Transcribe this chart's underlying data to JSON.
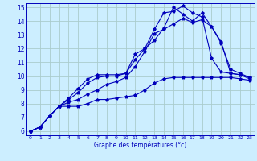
{
  "xlabel": "Graphe des températures (°c)",
  "x": [
    0,
    1,
    2,
    3,
    4,
    5,
    6,
    7,
    8,
    9,
    10,
    11,
    12,
    13,
    14,
    15,
    16,
    17,
    18,
    19,
    20,
    21,
    22,
    23
  ],
  "line1": [
    6.0,
    6.3,
    7.1,
    7.8,
    7.8,
    7.8,
    8.0,
    8.3,
    8.3,
    8.4,
    8.5,
    8.6,
    9.0,
    9.5,
    9.8,
    9.9,
    9.9,
    9.9,
    9.9,
    9.9,
    9.9,
    9.9,
    9.8,
    9.7
  ],
  "line2": [
    6.0,
    6.3,
    7.1,
    7.8,
    8.1,
    8.3,
    8.7,
    9.0,
    9.4,
    9.6,
    9.9,
    10.7,
    11.8,
    13.1,
    13.4,
    13.8,
    14.2,
    13.9,
    14.1,
    13.6,
    12.5,
    10.2,
    10.1,
    9.8
  ],
  "line3": [
    6.0,
    6.3,
    7.1,
    7.8,
    8.3,
    8.8,
    9.5,
    9.9,
    10.0,
    10.0,
    10.2,
    11.2,
    12.0,
    12.6,
    13.5,
    15.0,
    14.5,
    14.0,
    14.6,
    13.6,
    12.4,
    10.5,
    10.2,
    9.9
  ],
  "line4": [
    6.0,
    6.3,
    7.1,
    7.8,
    8.4,
    9.1,
    9.8,
    10.1,
    10.1,
    10.1,
    10.2,
    11.6,
    12.0,
    13.4,
    14.6,
    14.7,
    15.1,
    14.6,
    14.3,
    11.3,
    10.3,
    10.2,
    10.1,
    9.9
  ],
  "bg_color": "#cceeff",
  "grid_color": "#aacccc",
  "line_color": "#0000bb",
  "xlim": [
    -0.5,
    23.5
  ],
  "ylim": [
    5.7,
    15.3
  ],
  "yticks": [
    6,
    7,
    8,
    9,
    10,
    11,
    12,
    13,
    14,
    15
  ],
  "xticks": [
    0,
    1,
    2,
    3,
    4,
    5,
    6,
    7,
    8,
    9,
    10,
    11,
    12,
    13,
    14,
    15,
    16,
    17,
    18,
    19,
    20,
    21,
    22,
    23
  ]
}
